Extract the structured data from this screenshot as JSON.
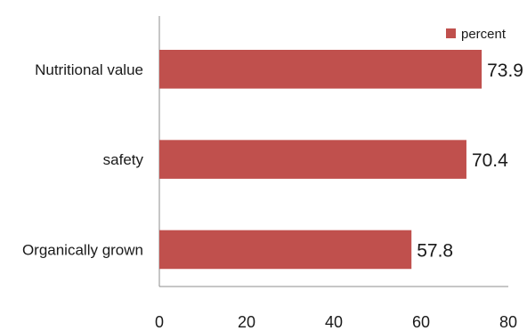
{
  "chart_data": {
    "type": "bar",
    "orientation": "horizontal",
    "categories": [
      "Nutritional value",
      "safety",
      "Organically grown"
    ],
    "series": [
      {
        "name": "percent",
        "values": [
          73.9,
          70.4,
          57.8
        ],
        "color": "#c0504d"
      }
    ],
    "xlim": [
      0,
      80
    ],
    "xticks": [
      "0",
      "20",
      "40",
      "60",
      "80"
    ],
    "data_labels": [
      "73.9",
      "70.4",
      "57.8"
    ],
    "grid": false,
    "legend_position": "top-right"
  }
}
